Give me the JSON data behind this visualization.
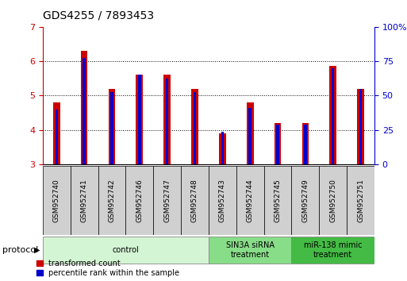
{
  "title": "GDS4255 / 7893453",
  "samples": [
    "GSM952740",
    "GSM952741",
    "GSM952742",
    "GSM952746",
    "GSM952747",
    "GSM952748",
    "GSM952743",
    "GSM952744",
    "GSM952745",
    "GSM952749",
    "GSM952750",
    "GSM952751"
  ],
  "red_values": [
    4.8,
    6.3,
    5.2,
    5.6,
    5.6,
    5.2,
    3.9,
    4.8,
    4.2,
    4.2,
    5.85,
    5.2
  ],
  "blue_values": [
    4.6,
    6.1,
    5.1,
    5.6,
    5.5,
    5.1,
    3.95,
    4.65,
    4.15,
    4.15,
    5.8,
    5.2
  ],
  "ylim_left": [
    3,
    7
  ],
  "ylim_right": [
    0,
    100
  ],
  "yticks_left": [
    3,
    4,
    5,
    6,
    7
  ],
  "yticks_right": [
    0,
    25,
    50,
    75,
    100
  ],
  "groups": [
    {
      "label": "control",
      "start": 0,
      "end": 6,
      "color": "#d4f5d4"
    },
    {
      "label": "SIN3A siRNA\ntreatment",
      "start": 6,
      "end": 9,
      "color": "#88dd88"
    },
    {
      "label": "miR-138 mimic\ntreatment",
      "start": 9,
      "end": 12,
      "color": "#44bb44"
    }
  ],
  "red_bar_width": 0.25,
  "blue_bar_width": 0.1,
  "red_color": "#cc0000",
  "blue_color": "#0000cc",
  "protocol_label": "protocol",
  "legend_red": "transformed count",
  "legend_blue": "percentile rank within the sample",
  "title_color": "#000000",
  "left_axis_color": "#cc0000",
  "right_axis_color": "#0000cc",
  "grid_yticks": [
    4,
    5,
    6
  ]
}
